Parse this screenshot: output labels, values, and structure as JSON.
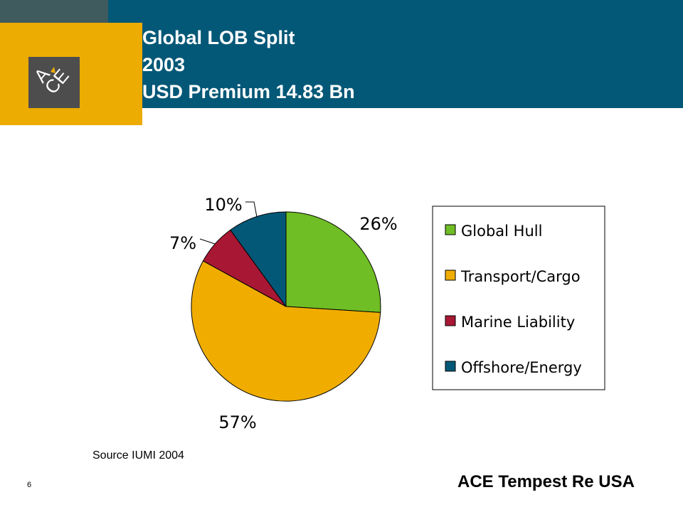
{
  "slide": {
    "title_lines": [
      "Global LOB Split",
      "2003",
      "USD Premium 14.83 Bn"
    ],
    "source": "Source IUMI 2004",
    "page_number": "6",
    "footer": "ACE Tempest Re USA",
    "logo_text": "ACE"
  },
  "colors": {
    "header": "#045877",
    "gold": "#ecac02",
    "strip": "#3f5b5e",
    "logo_bg": "#4d4d4d"
  },
  "chart_data": {
    "type": "pie",
    "title": "",
    "categories": [
      "Global Hull",
      "Transport/Cargo",
      "Marine Liability",
      "Offshore/Energy"
    ],
    "values": [
      26,
      57,
      7,
      10
    ],
    "labels": [
      "26%",
      "57%",
      "7%",
      "10%"
    ],
    "colors": [
      "#6fbe25",
      "#f0ad00",
      "#a81733",
      "#045877"
    ],
    "legend_position": "right",
    "start": "12 o'clock, clockwise"
  }
}
